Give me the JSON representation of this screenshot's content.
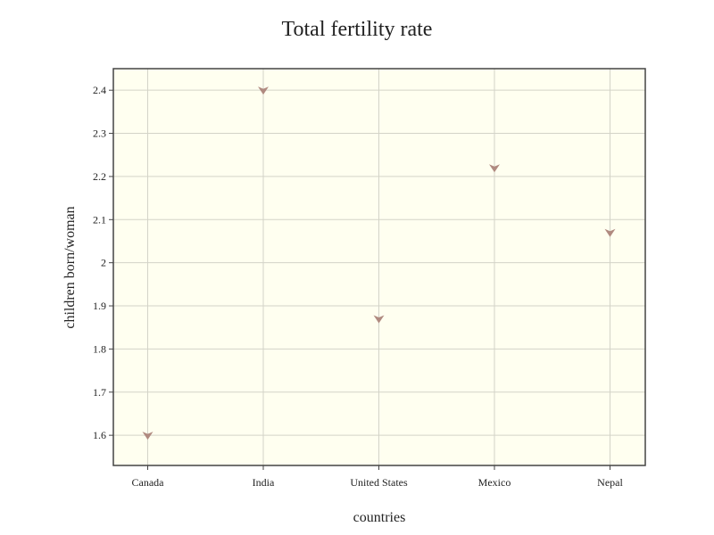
{
  "chart_data": {
    "type": "scatter",
    "title": "Total fertility rate",
    "xlabel": "countries",
    "ylabel": "children born/woman",
    "categories": [
      "Canada",
      "India",
      "United States",
      "Mexico",
      "Nepal"
    ],
    "series": [
      {
        "values": [
          1.6,
          2.4,
          1.87,
          2.22,
          2.07
        ]
      }
    ],
    "ylim": [
      1.53,
      2.45
    ],
    "yticks": [
      "1.6",
      "1.7",
      "1.8",
      "1.9",
      "2",
      "2.1",
      "2.2",
      "2.3",
      "2.4"
    ],
    "grid": true,
    "marker": "triangle-down",
    "colors": {
      "plot_background": "#fffff0",
      "grid": "#d3d3c8",
      "marker": "#b08a80",
      "axis": "#444444"
    }
  }
}
